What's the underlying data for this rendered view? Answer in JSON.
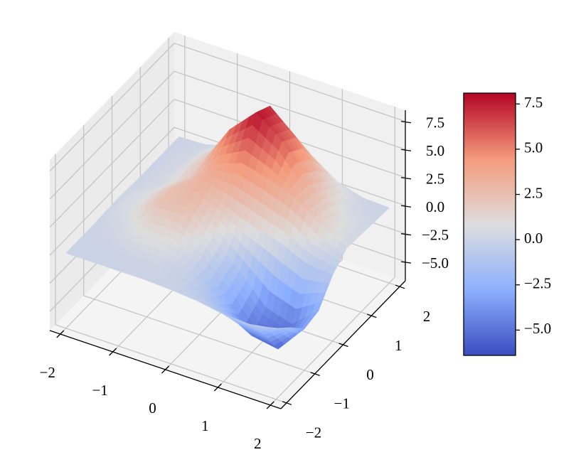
{
  "chart_data": {
    "type": "surface",
    "x": [
      -2,
      -1.5,
      -1,
      -0.5,
      0,
      0.5,
      1,
      1.5,
      2
    ],
    "y": [
      -2,
      -1.5,
      -1,
      -0.5,
      0,
      0.5,
      1,
      1.5,
      2
    ],
    "z": [
      [
        0.0,
        0.0,
        0.0,
        0.0,
        -0.1,
        -0.3,
        -0.7,
        -0.8,
        -0.4
      ],
      [
        0.0,
        0.0,
        0.1,
        0.1,
        -0.2,
        -1.3,
        -2.8,
        -3.0,
        -1.6
      ],
      [
        0.0,
        0.3,
        1.0,
        1.0,
        -0.1,
        -2.3,
        -5.2,
        -5.6,
        -3.0
      ],
      [
        0.1,
        0.8,
        2.4,
        2.6,
        0.7,
        -1.6,
        -4.0,
        -4.7,
        -2.7
      ],
      [
        0.1,
        0.8,
        2.4,
        3.1,
        2.0,
        1.1,
        0.5,
        -0.6,
        -0.8
      ],
      [
        0.0,
        0.4,
        1.8,
        3.8,
        4.7,
        4.1,
        3.2,
        1.6,
        0.3
      ],
      [
        0.0,
        0.4,
        2.0,
        5.6,
        7.9,
        6.1,
        3.0,
        1.1,
        0.2
      ],
      [
        0.0,
        0.3,
        1.8,
        5.1,
        7.2,
        5.2,
        2.0,
        0.4,
        0.1
      ],
      [
        0.0,
        0.1,
        0.8,
        2.4,
        3.4,
        2.4,
        0.8,
        0.1,
        0.0
      ]
    ],
    "colors": [
      "#3b4cc0",
      "#8db0fe",
      "#dddddd",
      "#f49a7b",
      "#b40426"
    ],
    "xlim": [
      -2.2,
      2.2
    ],
    "ylim": [
      -2.2,
      2.2
    ],
    "zlim": [
      -6.7,
      8.5
    ],
    "xticks": [
      {
        "value": -2,
        "label": "−2"
      },
      {
        "value": -1,
        "label": "−1"
      },
      0,
      1,
      2
    ],
    "yticks": [
      {
        "value": -2,
        "label": "−2"
      },
      {
        "value": -1,
        "label": "−1"
      },
      0,
      1,
      2
    ],
    "zticks": [
      {
        "value": -5,
        "label": "−5.0"
      },
      {
        "value": -2.5,
        "label": "−2.5"
      },
      {
        "value": 0,
        "label": "0.0"
      },
      2.5,
      {
        "value": 5,
        "label": "5.0"
      },
      7.5
    ],
    "grid": true,
    "colorbar": {
      "lim": [
        -6.4,
        8.1
      ],
      "ticks": [
        {
          "value": -5,
          "label": "−5.0"
        },
        {
          "value": -2.5,
          "label": "−2.5"
        },
        {
          "value": 0,
          "label": "0.0"
        },
        2.5,
        {
          "value": 5,
          "label": "5.0"
        },
        7.5
      ]
    }
  }
}
